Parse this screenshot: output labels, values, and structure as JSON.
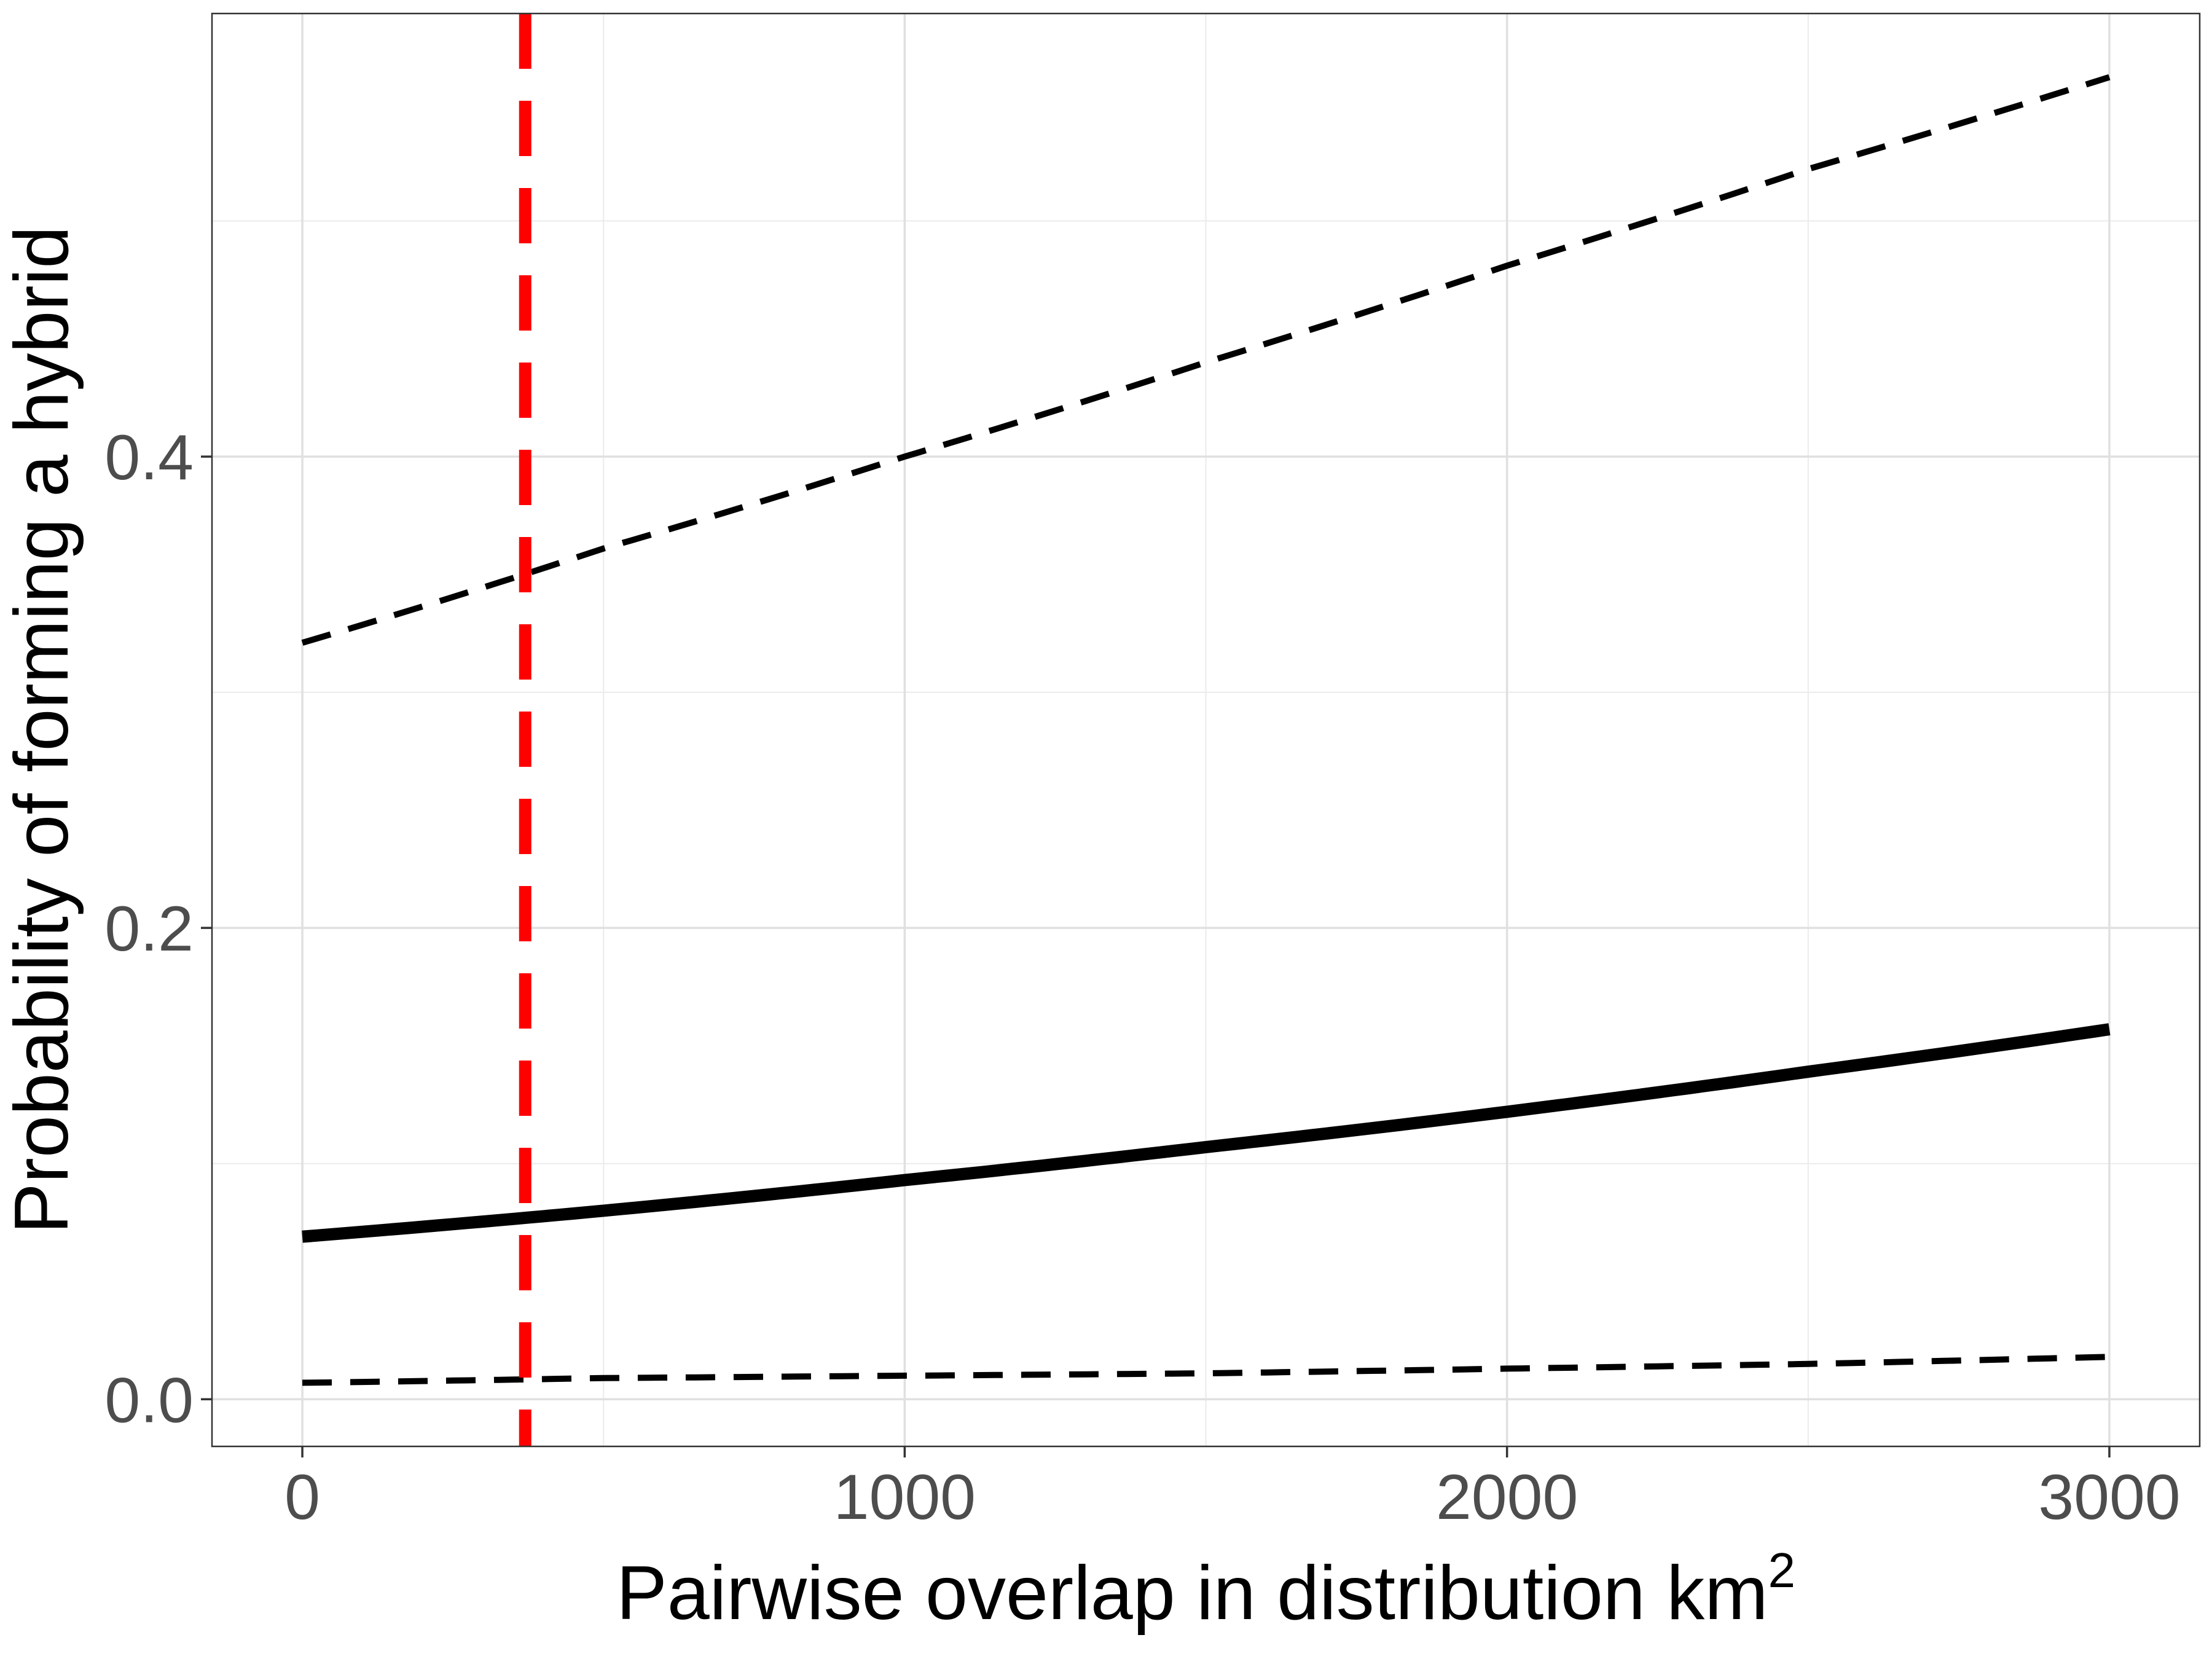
{
  "chart_data": {
    "type": "line",
    "title": "",
    "xlabel": "Pairwise overlap in distribution km",
    "xlabel_superscript": "2",
    "ylabel": "Probability of forming a hybrid",
    "xlim": [
      -150,
      3150
    ],
    "ylim": [
      -0.02,
      0.588
    ],
    "x_ticks": [
      0,
      1000,
      2000,
      3000
    ],
    "x_tick_labels": [
      "0",
      "1000",
      "2000",
      "3000"
    ],
    "y_ticks": [
      0.0,
      0.2,
      0.4
    ],
    "y_tick_labels": [
      "0.0",
      "0.2",
      "0.4"
    ],
    "x_minor_ticks": [
      500,
      1500,
      2500
    ],
    "y_minor_ticks": [
      0.1,
      0.3,
      0.5
    ],
    "grid": true,
    "legend": "none",
    "series": [
      {
        "role": "fit",
        "style": "solid",
        "color": "#000000",
        "x": [
          0,
          500,
          1000,
          1500,
          2000,
          2500,
          3000
        ],
        "y": [
          0.069,
          0.08,
          0.093,
          0.107,
          0.122,
          0.139,
          0.157
        ]
      },
      {
        "role": "upper-ci",
        "style": "dashed",
        "color": "#000000",
        "x": [
          0,
          500,
          1000,
          1500,
          2000,
          2500,
          3000
        ],
        "y": [
          0.321,
          0.361,
          0.4,
          0.44,
          0.481,
          0.522,
          0.561
        ]
      },
      {
        "role": "lower-ci",
        "style": "dashed",
        "color": "#000000",
        "x": [
          0,
          500,
          1000,
          1500,
          2000,
          2500,
          3000
        ],
        "y": [
          0.007,
          0.009,
          0.01,
          0.011,
          0.013,
          0.015,
          0.018
        ]
      }
    ],
    "vline": {
      "x": 370,
      "color": "#ff0000",
      "style": "dashed"
    }
  }
}
